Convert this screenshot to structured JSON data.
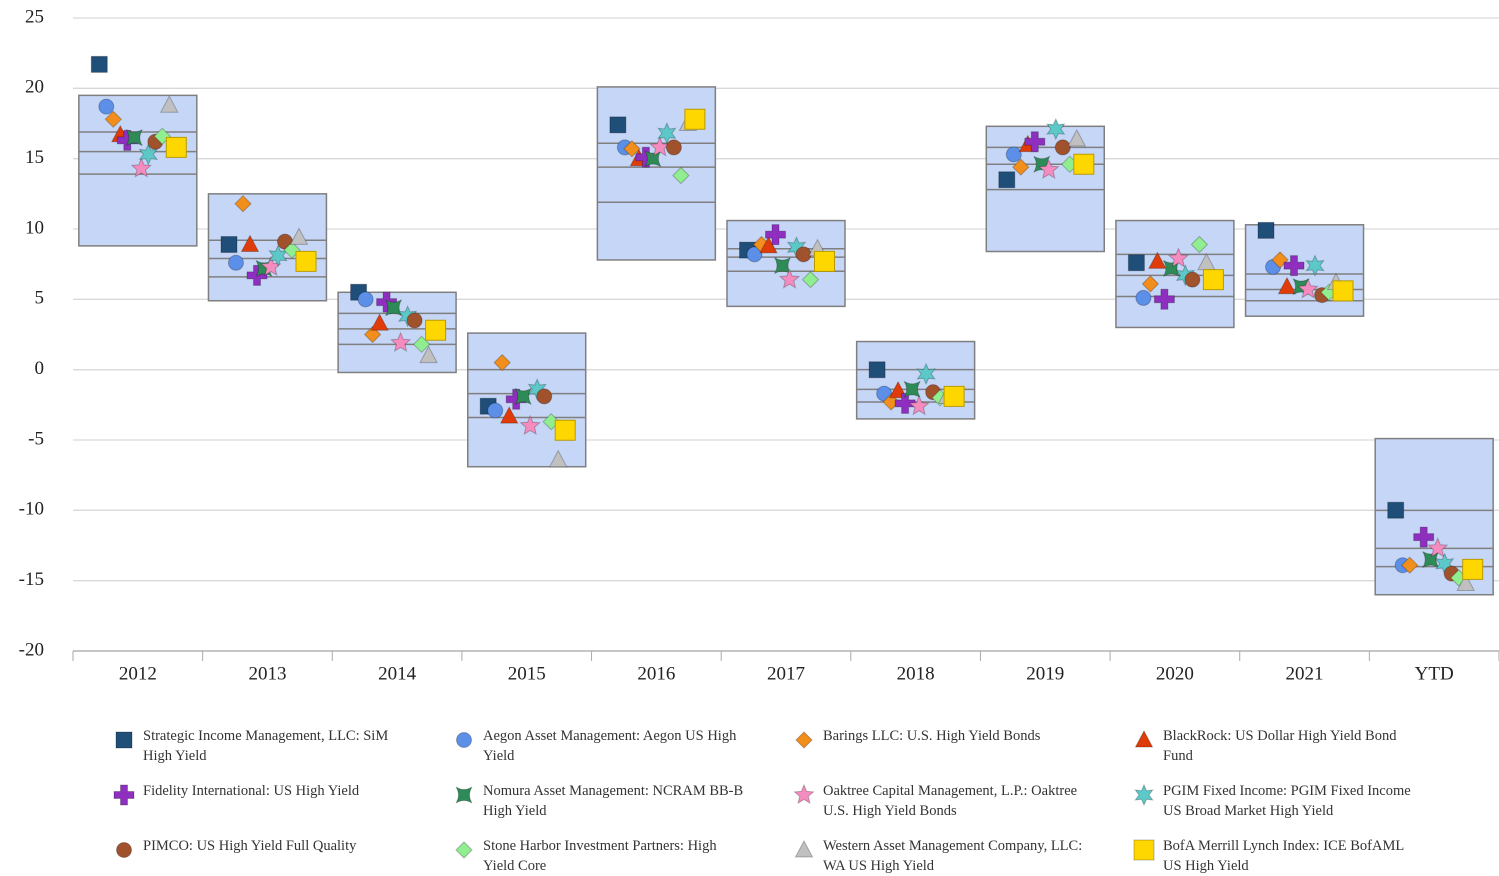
{
  "chart_data": {
    "type": "box-scatter",
    "categories": [
      "2012",
      "2013",
      "2014",
      "2015",
      "2016",
      "2017",
      "2018",
      "2019",
      "2020",
      "2021",
      "YTD"
    ],
    "ylim": [
      -20,
      25
    ],
    "yticks": [
      -20,
      -15,
      -10,
      -5,
      0,
      5,
      10,
      15,
      20,
      25
    ],
    "grid": true,
    "box": {
      "color": "#c6d6f7",
      "low": [
        8.8,
        4.9,
        -0.2,
        -6.9,
        7.8,
        4.5,
        -3.5,
        8.4,
        3.0,
        3.8,
        -16.0
      ],
      "q1": [
        13.9,
        6.6,
        1.8,
        -3.4,
        11.9,
        7.0,
        -2.3,
        12.8,
        5.2,
        4.9,
        -14.0
      ],
      "median": [
        15.5,
        7.9,
        2.9,
        -1.7,
        14.4,
        8.0,
        -1.4,
        14.6,
        6.7,
        5.7,
        -12.7
      ],
      "q3": [
        16.9,
        9.2,
        4.0,
        0.0,
        16.1,
        8.6,
        0.0,
        15.8,
        8.2,
        6.8,
        -10.0
      ],
      "high": [
        19.5,
        12.5,
        5.5,
        2.6,
        20.1,
        10.6,
        2.0,
        17.3,
        10.6,
        10.3,
        -4.9
      ]
    },
    "series": [
      {
        "name": "Strategic Income Management, LLC: SiM High Yield",
        "color": "#1f4e79",
        "marker": "square",
        "values": [
          21.7,
          8.9,
          5.5,
          -2.6,
          17.4,
          8.5,
          0.0,
          13.5,
          7.6,
          9.9,
          -10.0
        ]
      },
      {
        "name": "Aegon Asset Management: Aegon US High Yield",
        "color": "#5b8fe8",
        "marker": "circle",
        "values": [
          18.7,
          7.6,
          5.0,
          -2.9,
          15.8,
          8.2,
          -1.7,
          15.3,
          5.1,
          7.3,
          -13.9
        ]
      },
      {
        "name": "Barings LLC: U.S. High Yield Bonds",
        "color": "#f28e1c",
        "marker": "diamond",
        "values": [
          17.8,
          11.8,
          2.5,
          0.5,
          15.7,
          8.9,
          -2.3,
          14.4,
          6.1,
          7.8,
          -13.9
        ]
      },
      {
        "name": "BlackRock: US Dollar High Yield Bond Fund",
        "color": "#e03c0a",
        "marker": "triangle",
        "values": [
          16.7,
          8.9,
          3.3,
          -3.3,
          15.0,
          8.8,
          -1.5,
          16.0,
          7.7,
          5.9,
          null
        ]
      },
      {
        "name": "Fidelity International: US High Yield",
        "color": "#8e2fbf",
        "marker": "plus",
        "values": [
          16.3,
          6.7,
          4.8,
          -2.1,
          15.1,
          9.6,
          -2.4,
          16.2,
          5.0,
          7.4,
          -11.9
        ]
      },
      {
        "name": "Nomura Asset Management: NCRAM BB-B High Yield",
        "color": "#2e8b57",
        "marker": "bowtie",
        "values": [
          16.5,
          7.2,
          4.4,
          -1.9,
          15.0,
          7.4,
          -1.4,
          14.6,
          7.2,
          5.9,
          -13.5
        ]
      },
      {
        "name": "Oaktree Capital Management, L.P.: Oaktree U.S. High Yield Bonds",
        "color": "#f58cc0",
        "marker": "star",
        "values": [
          14.3,
          7.3,
          1.9,
          -4.0,
          15.8,
          6.4,
          -2.6,
          14.2,
          7.9,
          5.7,
          -12.7
        ]
      },
      {
        "name": "PGIM Fixed Income: PGIM Fixed Income US Broad Market High Yield",
        "color": "#5cc8c8",
        "marker": "star6",
        "values": [
          15.3,
          8.1,
          3.8,
          -1.4,
          16.8,
          8.7,
          -0.3,
          17.1,
          6.7,
          7.4,
          -13.8
        ]
      },
      {
        "name": "PIMCO: US High Yield Full Quality",
        "color": "#a0522d",
        "marker": "circle",
        "values": [
          16.2,
          9.1,
          3.5,
          -1.9,
          15.8,
          8.2,
          -1.6,
          15.8,
          6.4,
          5.3,
          -14.5
        ]
      },
      {
        "name": "Stone Harbor Investment Partners: High Yield Core",
        "color": "#90ee90",
        "marker": "diamond",
        "values": [
          16.6,
          8.5,
          1.8,
          -3.7,
          13.8,
          6.4,
          -2.0,
          14.6,
          8.9,
          5.5,
          -14.8
        ]
      },
      {
        "name": "Western Asset Management Company, LLC: WA US High Yield",
        "color": "#c0c0c0",
        "marker": "triangle",
        "values": [
          18.8,
          9.4,
          1.0,
          -6.4,
          17.5,
          8.6,
          -1.9,
          16.4,
          7.6,
          6.2,
          -15.2
        ]
      },
      {
        "name": "BofA Merrill Lynch Index: ICE BofAML US High Yield",
        "color": "#ffd700",
        "marker": "bigsquare",
        "values": [
          15.8,
          7.7,
          2.8,
          -4.3,
          17.8,
          7.7,
          -1.9,
          14.6,
          6.4,
          5.6,
          -14.2
        ]
      }
    ]
  }
}
